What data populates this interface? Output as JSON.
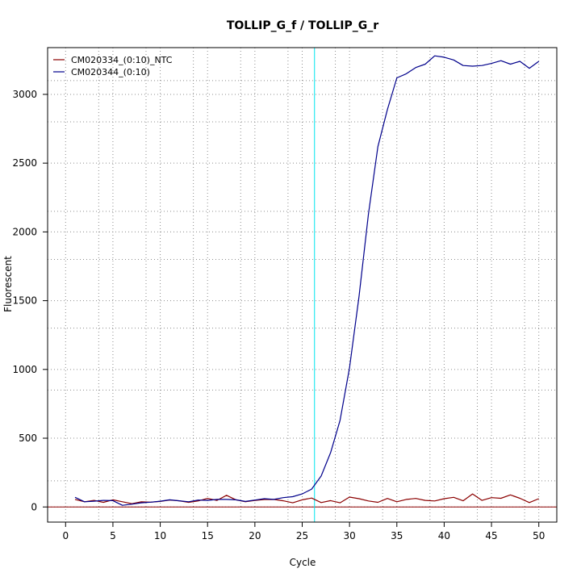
{
  "chart_data": {
    "type": "line",
    "title": "TOLLIP_G_f / TOLLIP_G_r",
    "xlabel": "Cycle",
    "ylabel": "Fluorescent",
    "xlim": [
      -1.9,
      51.9
    ],
    "ylim": [
      -110,
      3340
    ],
    "xticks": [
      0,
      5,
      10,
      15,
      20,
      25,
      30,
      35,
      40,
      45,
      50
    ],
    "yticks": [
      0,
      500,
      1000,
      1500,
      2000,
      2500,
      3000
    ],
    "x_grid": [
      3.5,
      8.5,
      13.5,
      18.5,
      23.5,
      28.5,
      33.5,
      38.5,
      43.5,
      48.5
    ],
    "y_grid": [
      0,
      190,
      500,
      850,
      1000,
      1300,
      1500,
      1800,
      2000,
      2150,
      2500,
      2800,
      3000,
      3100
    ],
    "grid": true,
    "threshold": {
      "x": 26.3,
      "color": "#00e5ee"
    },
    "baseline": {
      "y": 0,
      "color": "#8b0000"
    },
    "legend_position": "top-left",
    "series": [
      {
        "name": "CM020334_(0:10)_NTC",
        "color": "#8b0000",
        "x": [
          1,
          2,
          3,
          4,
          5,
          6,
          7,
          8,
          9,
          10,
          11,
          12,
          13,
          14,
          15,
          16,
          17,
          18,
          19,
          20,
          21,
          22,
          23,
          24,
          25,
          26,
          27,
          28,
          29,
          30,
          31,
          32,
          33,
          34,
          35,
          36,
          37,
          38,
          39,
          40,
          41,
          42,
          43,
          44,
          45,
          46,
          47,
          48,
          49,
          50
        ],
        "y": [
          55,
          38,
          48,
          34,
          52,
          38,
          24,
          38,
          35,
          40,
          50,
          45,
          34,
          44,
          62,
          48,
          85,
          52,
          38,
          48,
          54,
          55,
          45,
          30,
          52,
          65,
          32,
          46,
          30,
          72,
          60,
          44,
          34,
          62,
          38,
          55,
          62,
          48,
          44,
          60,
          70,
          45,
          95,
          48,
          68,
          63,
          88,
          63,
          32,
          60
        ]
      },
      {
        "name": "CM020344_(0:10)",
        "color": "#00008b",
        "x": [
          1,
          2,
          3,
          4,
          5,
          6,
          7,
          8,
          9,
          10,
          11,
          12,
          13,
          14,
          15,
          16,
          17,
          18,
          19,
          20,
          21,
          22,
          23,
          24,
          25,
          26,
          27,
          28,
          29,
          30,
          31,
          32,
          33,
          34,
          35,
          36,
          37,
          38,
          39,
          40,
          41,
          42,
          43,
          44,
          45,
          46,
          47,
          48,
          49,
          50
        ],
        "y": [
          70,
          38,
          42,
          48,
          46,
          12,
          20,
          30,
          35,
          42,
          52,
          45,
          38,
          50,
          48,
          55,
          55,
          52,
          40,
          50,
          60,
          55,
          68,
          75,
          95,
          130,
          225,
          395,
          630,
          1010,
          1530,
          2130,
          2620,
          2890,
          3120,
          3150,
          3195,
          3220,
          3280,
          3270,
          3250,
          3210,
          3205,
          3210,
          3225,
          3245,
          3220,
          3240,
          3190,
          3240
        ]
      }
    ]
  }
}
